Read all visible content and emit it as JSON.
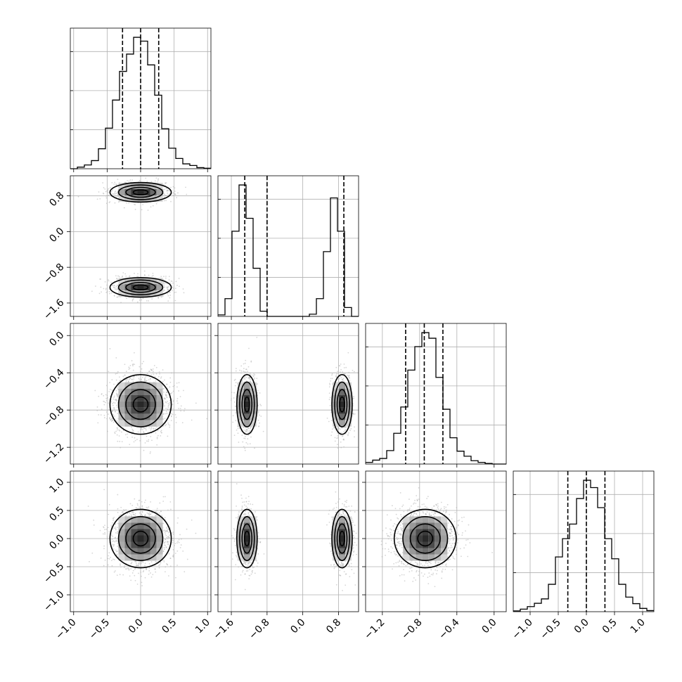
{
  "chart_data": {
    "type": "corner",
    "n_params": 4,
    "grid": true,
    "tick_labels": {
      "p1": [
        "−1.0",
        "−0.5",
        "0.0",
        "0.5",
        "1.0"
      ],
      "p2": [
        "−1.6",
        "−0.8",
        "0.0",
        "0.8"
      ],
      "p3": [
        "−1.2",
        "−0.8",
        "−0.4",
        "0.0"
      ],
      "p4": [
        "−1.0",
        "−0.5",
        "0.0",
        "0.5",
        "1.0"
      ]
    },
    "params": [
      {
        "id": "p1",
        "range": [
          -1.05,
          1.05
        ],
        "ticks": [
          -1.0,
          -0.5,
          0.0,
          0.5,
          1.0
        ],
        "quantiles": [
          -0.27,
          0.0,
          0.27
        ],
        "hist": {
          "edges": [
            -1.05,
            -0.945,
            -0.84,
            -0.735,
            -0.63,
            -0.525,
            -0.42,
            -0.315,
            -0.21,
            -0.105,
            0.0,
            0.105,
            0.21,
            0.315,
            0.42,
            0.525,
            0.63,
            0.735,
            0.84,
            0.945,
            1.05
          ],
          "counts": [
            0,
            3,
            7,
            15,
            37,
            75,
            127,
            180,
            212,
            243,
            236,
            192,
            136,
            74,
            38,
            19,
            9,
            6,
            2,
            1
          ]
        }
      },
      {
        "id": "p2",
        "range": [
          -1.9,
          1.25
        ],
        "ticks": [
          -1.6,
          -0.8,
          0.0,
          0.8
        ],
        "quantiles": [
          -1.3,
          -0.8,
          0.92
        ],
        "hist": {
          "edges": [
            -1.9,
            -1.7425,
            -1.585,
            -1.4275,
            -1.27,
            -1.1125,
            -0.955,
            -0.7975,
            -0.64,
            -0.4825,
            -0.325,
            -0.1675,
            -0.01,
            0.1475,
            0.305,
            0.4625,
            0.62,
            0.7775,
            0.935,
            1.0925,
            1.25
          ],
          "counts": [
            4,
            48,
            230,
            355,
            265,
            130,
            14,
            0,
            0,
            0,
            0,
            0,
            0,
            6,
            48,
            175,
            320,
            230,
            24,
            0
          ]
        }
      },
      {
        "id": "p3",
        "range": [
          -1.38,
          0.13
        ],
        "ticks": [
          -1.2,
          -0.8,
          -0.4,
          0.0
        ],
        "quantiles": [
          -0.95,
          -0.75,
          -0.55
        ],
        "hist": {
          "edges": [
            -1.38,
            -1.3045,
            -1.229,
            -1.1535,
            -1.078,
            -1.0025,
            -0.927,
            -0.8515,
            -0.776,
            -0.7005,
            -0.625,
            -0.5495,
            -0.474,
            -0.3985,
            -0.323,
            -0.2475,
            -0.172,
            -0.0965,
            -0.021,
            0.0545,
            0.13
          ],
          "counts": [
            3,
            7,
            10,
            24,
            55,
            102,
            168,
            210,
            235,
            225,
            155,
            98,
            47,
            23,
            14,
            6,
            3,
            1,
            0,
            0
          ]
        }
      },
      {
        "id": "p4",
        "range": [
          -1.3,
          1.2
        ],
        "ticks": [
          -1.0,
          -0.5,
          0.0,
          0.5,
          1.0
        ],
        "quantiles": [
          -0.33,
          0.0,
          0.33
        ],
        "hist": {
          "edges": [
            -1.3,
            -1.175,
            -1.05,
            -0.925,
            -0.8,
            -0.675,
            -0.55,
            -0.425,
            -0.3,
            -0.175,
            -0.05,
            0.075,
            0.2,
            0.325,
            0.45,
            0.575,
            0.7,
            0.825,
            0.95,
            1.075,
            1.2
          ],
          "counts": [
            2,
            7,
            14,
            23,
            35,
            75,
            150,
            200,
            240,
            310,
            360,
            340,
            285,
            200,
            145,
            75,
            40,
            22,
            9,
            3
          ]
        }
      }
    ]
  }
}
